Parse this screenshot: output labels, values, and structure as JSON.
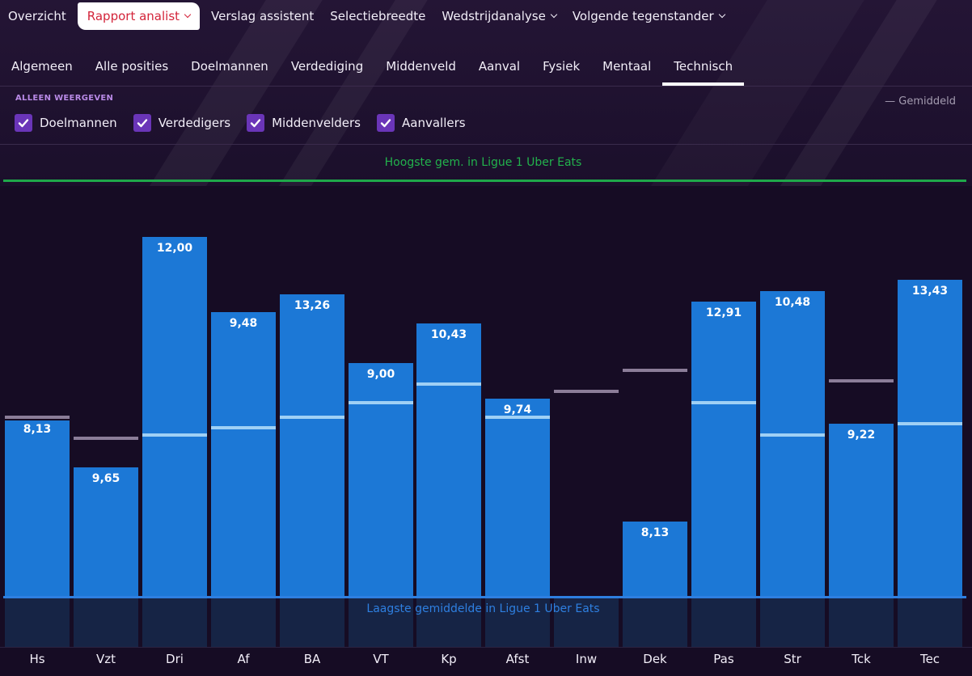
{
  "topnav": [
    {
      "label": "Overzicht",
      "active": false,
      "dropdown": false
    },
    {
      "label": "Rapport analist",
      "active": true,
      "dropdown": true
    },
    {
      "label": "Verslag assistent",
      "active": false,
      "dropdown": false
    },
    {
      "label": "Selectiebreedte",
      "active": false,
      "dropdown": false
    },
    {
      "label": "Wedstrijdanalyse",
      "active": false,
      "dropdown": true
    },
    {
      "label": "Volgende tegenstander",
      "active": false,
      "dropdown": true
    }
  ],
  "subtabs": [
    {
      "label": "Algemeen",
      "active": false
    },
    {
      "label": "Alle posities",
      "active": false
    },
    {
      "label": "Doelmannen",
      "active": false
    },
    {
      "label": "Verdediging",
      "active": false
    },
    {
      "label": "Middenveld",
      "active": false
    },
    {
      "label": "Aanval",
      "active": false
    },
    {
      "label": "Fysiek",
      "active": false
    },
    {
      "label": "Mentaal",
      "active": false
    },
    {
      "label": "Technisch",
      "active": true
    }
  ],
  "filter": {
    "label": "ALLEEN WEERGEVEN",
    "options": [
      {
        "label": "Doelmannen",
        "checked": true
      },
      {
        "label": "Verdedigers",
        "checked": true
      },
      {
        "label": "Middenvelders",
        "checked": true
      },
      {
        "label": "Aanvallers",
        "checked": true
      }
    ]
  },
  "legend": {
    "average_label": "— Gemiddeld"
  },
  "colors": {
    "bar": "#1c78d6",
    "highest_line": "#1fa84a",
    "lowest_line": "#2e7fe0",
    "avg_above": "#8b7d98",
    "avg_inside": "#9fd0f5",
    "active_nav": "#d3243a",
    "checkbox": "#6a35b8"
  },
  "chart_data": {
    "type": "bar",
    "highest_label": "Hoogste gem. in Ligue 1 Uber Eats",
    "lowest_label": "Laagste gemiddelde in Ligue 1 Uber Eats",
    "categories": [
      "Hs",
      "Vzt",
      "Dri",
      "Af",
      "BA",
      "VT",
      "Kp",
      "Afst",
      "Inw",
      "Dek",
      "Pas",
      "Str",
      "Tck",
      "Tec"
    ],
    "value_labels": [
      "8,13",
      "9,65",
      "12,00",
      "9,48",
      "13,26",
      "9,00",
      "10,43",
      "9,74",
      "",
      "8,13",
      "12,91",
      "10,48",
      "9,22",
      "13,43"
    ],
    "relative_level": [
      0.49,
      0.36,
      1.0,
      0.79,
      0.84,
      0.65,
      0.76,
      0.55,
      0.0,
      0.21,
      0.82,
      0.85,
      0.48,
      0.88
    ],
    "average_level": [
      0.5,
      0.44,
      0.45,
      0.47,
      0.5,
      0.54,
      0.59,
      0.5,
      0.57,
      0.63,
      0.54,
      0.45,
      0.6,
      0.48
    ],
    "ylim": [
      0,
      1
    ]
  }
}
